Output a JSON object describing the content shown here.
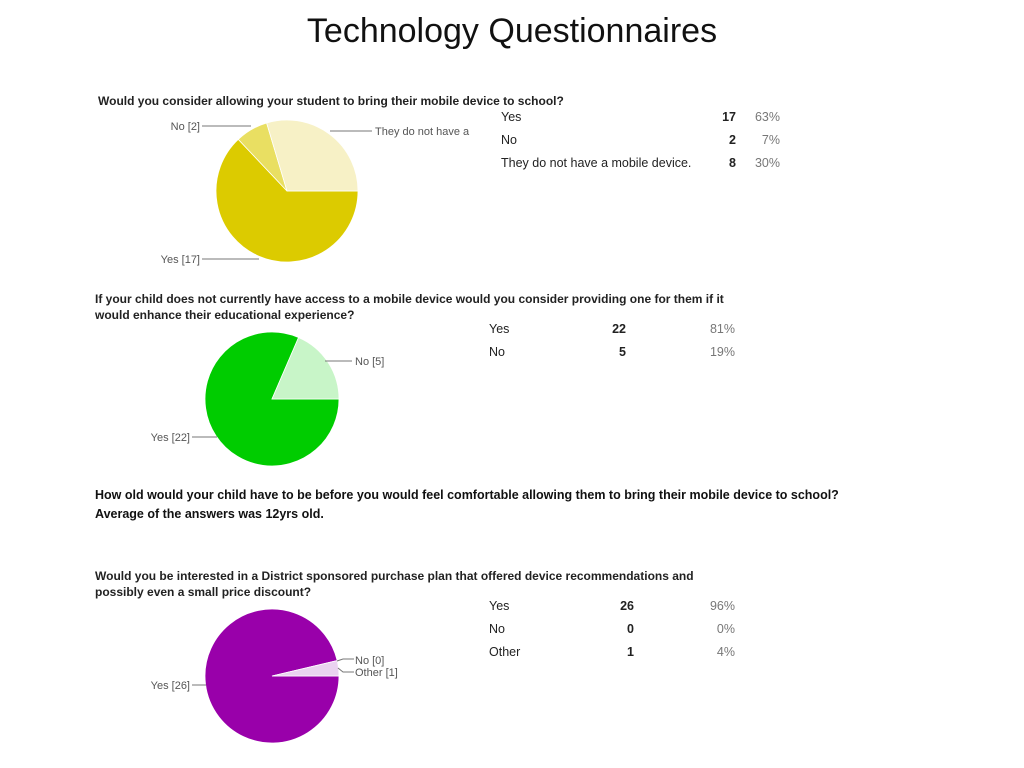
{
  "slide": {
    "title": "Technology Questionnaires"
  },
  "note": {
    "line1": "How old would your child have to be before you would feel comfortable allowing them to bring their mobile device to school?",
    "line2": "Average of the answers was 12yrs old."
  },
  "chart_data": [
    {
      "type": "pie",
      "title": "Would you consider allowing your student to bring their mobile device to school?",
      "slices": [
        {
          "label": "Yes",
          "callout": "Yes [17]",
          "value": 17,
          "percent": "63%",
          "color": "#dccb00"
        },
        {
          "label": "No",
          "callout": "No [2]",
          "value": 2,
          "percent": "7%",
          "color": "#e9df62"
        },
        {
          "label": "They do not have a mobile device.",
          "callout": "They do not have a",
          "value": 8,
          "percent": "30%",
          "color": "#f7f1c6"
        }
      ]
    },
    {
      "type": "pie",
      "title": "If your child does not currently have access to a mobile device would you consider providing one for them if it would enhance their educational experience?",
      "slices": [
        {
          "label": "Yes",
          "callout": "Yes [22]",
          "value": 22,
          "percent": "81%",
          "color": "#00cc00"
        },
        {
          "label": "No",
          "callout": "No [5]",
          "value": 5,
          "percent": "19%",
          "color": "#c8f5c8"
        }
      ]
    },
    {
      "type": "pie",
      "title": "Would you be interested in a District sponsored purchase plan that offered device recommendations and possibly even a small price discount?",
      "slices": [
        {
          "label": "Yes",
          "callout": "Yes [26]",
          "value": 26,
          "percent": "96%",
          "color": "#9900aa"
        },
        {
          "label": "No",
          "callout": "No [0]",
          "value": 0,
          "percent": "0%",
          "color": "#cc66dd"
        },
        {
          "label": "Other",
          "callout": "Other [1]",
          "value": 1,
          "percent": "4%",
          "color": "#ead2f0"
        }
      ]
    }
  ]
}
